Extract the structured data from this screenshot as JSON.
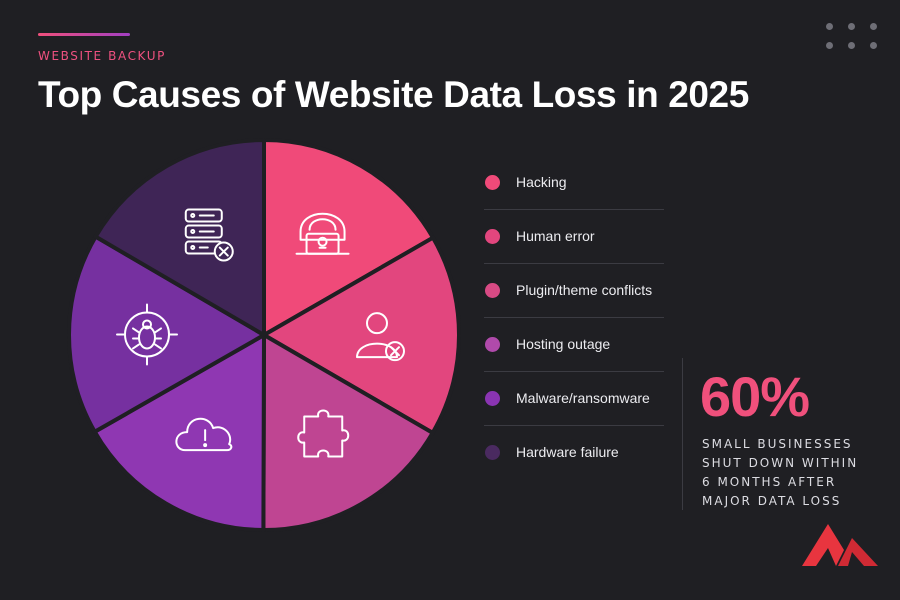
{
  "header": {
    "kicker": "WEBSITE BACKUP",
    "title": "Top Causes of Website Data Loss in 2025"
  },
  "chart_data": {
    "type": "pie",
    "categories": [
      "Hacking",
      "Human error",
      "Plugin/theme conflicts",
      "Hosting outage",
      "Malware/ransomware",
      "Hardware failure"
    ],
    "values": [
      16.7,
      16.7,
      16.7,
      16.7,
      16.7,
      16.6
    ],
    "colors": [
      "#f04a79",
      "#e2467e",
      "#bf4592",
      "#8f37b2",
      "#7630a0",
      "#3f2556"
    ],
    "icons": [
      "hacker-icon",
      "user-error-icon",
      "puzzle-piece-icon",
      "cloud-alert-icon",
      "bug-target-icon",
      "server-error-icon"
    ],
    "legend": "right"
  },
  "legend": {
    "items": [
      {
        "label": "Hacking",
        "color": "#f04a79"
      },
      {
        "label": "Human error",
        "color": "#e2467e"
      },
      {
        "label": "Plugin/theme conflicts",
        "color": "#d84a84"
      },
      {
        "label": "Hosting outage",
        "color": "#b04aab"
      },
      {
        "label": "Malware/ransomware",
        "color": "#8a34b2"
      },
      {
        "label": "Hardware failure",
        "color": "#4a2a60"
      }
    ]
  },
  "stat": {
    "value": "60%",
    "lines": [
      "SMALL BUSINESSES",
      "SHUT DOWN WITHIN",
      "6 MONTHS AFTER",
      "MAJOR DATA LOSS"
    ]
  },
  "brand": {
    "logo": "m-logo-icon",
    "colors": [
      "#e8353f",
      "#c2212b"
    ]
  },
  "decor": {
    "dots": "dot-grid-icon"
  }
}
